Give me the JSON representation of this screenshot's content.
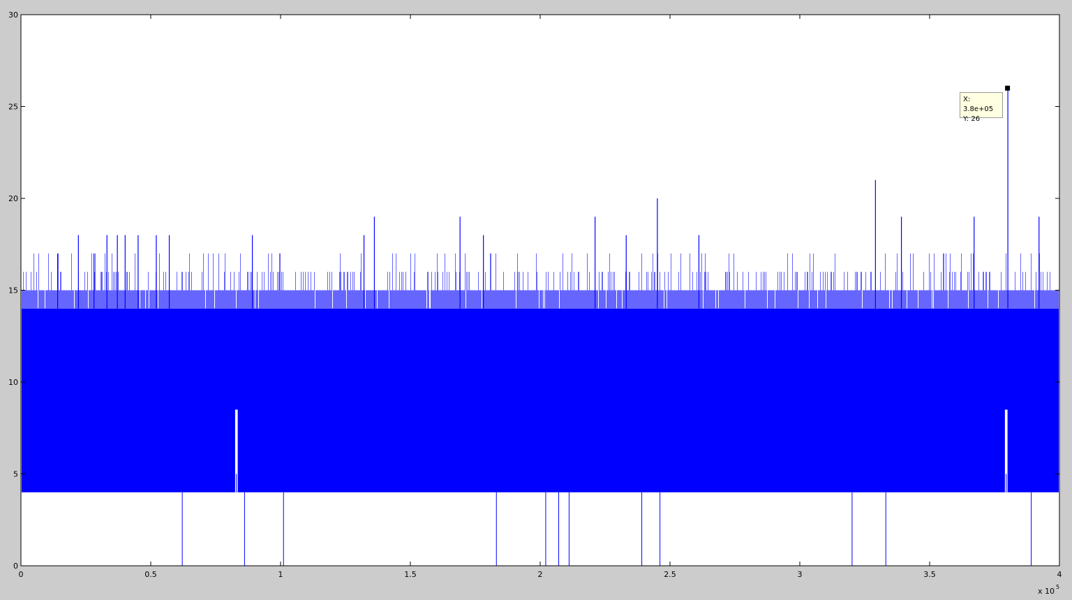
{
  "chart_data": {
    "type": "line",
    "title": "",
    "xlabel": "",
    "ylabel": "",
    "xlim": [
      0,
      400000
    ],
    "ylim": [
      0,
      30
    ],
    "x_exponent_label": "x 10",
    "x_exponent_power": "5",
    "x_ticks": [
      0,
      50000,
      100000,
      150000,
      200000,
      250000,
      300000,
      350000,
      400000
    ],
    "x_tick_labels": [
      "0",
      "0.5",
      "1",
      "1.5",
      "2",
      "2.5",
      "3",
      "3.5",
      "4"
    ],
    "y_ticks": [
      0,
      5,
      10,
      15,
      20,
      25,
      30
    ],
    "y_tick_labels": [
      "0",
      "5",
      "10",
      "15",
      "20",
      "25",
      "30"
    ],
    "grid": false,
    "series": [
      {
        "color": "#0000ff",
        "description_of_band": "dense oscillation between baseline low and upper envelope",
        "band_low": 4,
        "band_high": 14,
        "envelope_max_typical": 15,
        "spikes": [
          {
            "x": 14000,
            "y": 17
          },
          {
            "x": 22000,
            "y": 18
          },
          {
            "x": 28000,
            "y": 17
          },
          {
            "x": 33000,
            "y": 18
          },
          {
            "x": 37000,
            "y": 18
          },
          {
            "x": 40000,
            "y": 18
          },
          {
            "x": 45000,
            "y": 18
          },
          {
            "x": 52000,
            "y": 18
          },
          {
            "x": 57000,
            "y": 18
          },
          {
            "x": 89000,
            "y": 18
          },
          {
            "x": 132000,
            "y": 18
          },
          {
            "x": 136000,
            "y": 19
          },
          {
            "x": 169000,
            "y": 19
          },
          {
            "x": 178000,
            "y": 18
          },
          {
            "x": 221000,
            "y": 19
          },
          {
            "x": 233000,
            "y": 18
          },
          {
            "x": 245000,
            "y": 20
          },
          {
            "x": 261000,
            "y": 18
          },
          {
            "x": 329000,
            "y": 21
          },
          {
            "x": 339000,
            "y": 19
          },
          {
            "x": 367000,
            "y": 19
          },
          {
            "x": 380000,
            "y": 26
          },
          {
            "x": 392000,
            "y": 19
          }
        ],
        "dips": [
          {
            "x": 62000,
            "y": 0
          },
          {
            "x": 86000,
            "y": 0
          },
          {
            "x": 101000,
            "y": 0
          },
          {
            "x": 183000,
            "y": 0
          },
          {
            "x": 202000,
            "y": 0
          },
          {
            "x": 207000,
            "y": 0
          },
          {
            "x": 211000,
            "y": 0
          },
          {
            "x": 239000,
            "y": 0
          },
          {
            "x": 246000,
            "y": 0
          },
          {
            "x": 320000,
            "y": 0
          },
          {
            "x": 333000,
            "y": 0
          },
          {
            "x": 389000,
            "y": 0
          }
        ],
        "gaps": [
          {
            "x_start": 82500,
            "x_end": 83500,
            "y_low": 5
          },
          {
            "x_start": 379000,
            "x_end": 380000,
            "y_low": 5
          }
        ]
      }
    ],
    "datatip": {
      "x": 380000,
      "y": 26,
      "x_text": "X: 3.8e+05",
      "y_text": "Y: 26"
    }
  }
}
